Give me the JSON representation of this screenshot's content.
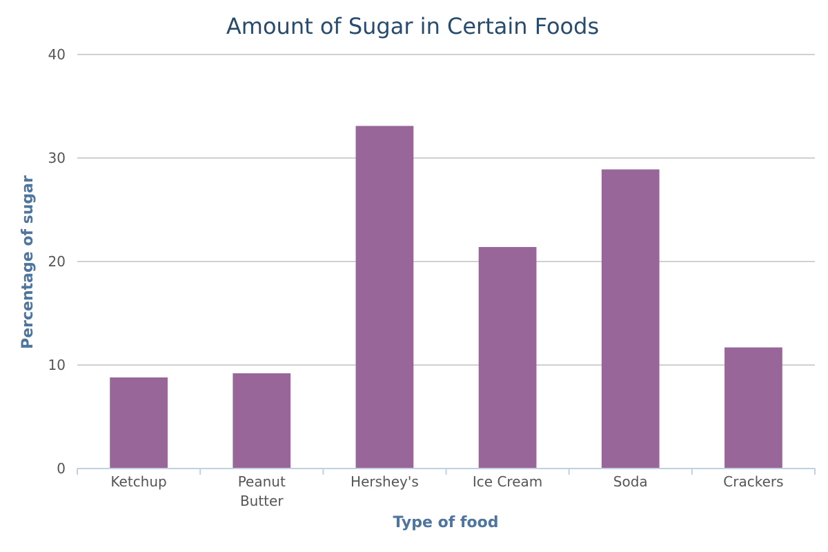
{
  "chart_data": {
    "type": "bar",
    "title": "Amount of Sugar in Certain Foods",
    "xlabel": "Type of food",
    "ylabel": "Percentage of sugar",
    "categories": [
      "Ketchup",
      "Peanut Butter",
      "Hershey's",
      "Ice Cream",
      "Soda",
      "Crackers"
    ],
    "category_lines": [
      [
        "Ketchup"
      ],
      [
        "Peanut",
        "Butter"
      ],
      [
        "Hershey's"
      ],
      [
        "Ice Cream"
      ],
      [
        "Soda"
      ],
      [
        "Crackers"
      ]
    ],
    "values": [
      8.8,
      9.2,
      33.1,
      21.4,
      28.9,
      11.7
    ],
    "ylim": [
      0,
      40
    ],
    "yticks": [
      0,
      10,
      20,
      30,
      40
    ],
    "grid": true,
    "legend": "none"
  },
  "colors": {
    "bar": "#996699",
    "title": "#274b6d",
    "axis_title": "#4d759e",
    "grid": "#c0c0c0",
    "axis": "#c0d0e0"
  }
}
